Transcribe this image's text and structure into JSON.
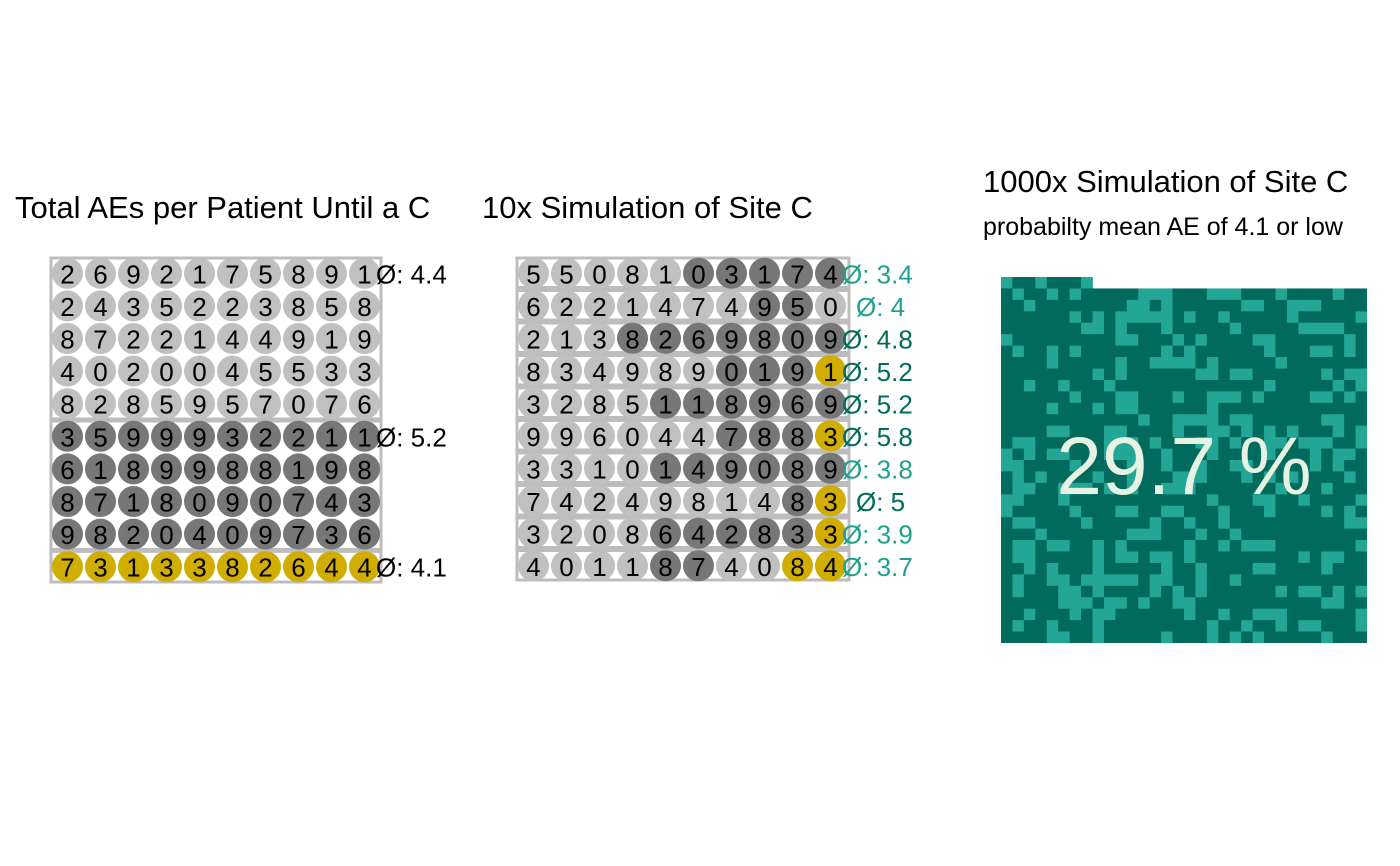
{
  "colors": {
    "light_dot": "#c0c0c0",
    "dark_dot": "#777777",
    "highlight_dot": "#d1ad00",
    "row_box": "#bdbdbd",
    "teal_light": "#1fa18f",
    "teal_dark": "#006c5c",
    "waffle_dark": "#006b5c",
    "waffle_light": "#24a697",
    "waffle_text": "#e6f3e3"
  },
  "chart_data": [
    {
      "type": "table",
      "title": "Total AEs per Patient Until a C",
      "groups": [
        {
          "kind": "light",
          "mean_label": "Ø: 4.4",
          "rows": [
            [
              2,
              6,
              9,
              2,
              1,
              7,
              5,
              8,
              9,
              1
            ],
            [
              2,
              4,
              3,
              5,
              2,
              2,
              3,
              8,
              5,
              8
            ],
            [
              8,
              7,
              2,
              2,
              1,
              4,
              4,
              9,
              1,
              9
            ],
            [
              4,
              0,
              2,
              0,
              0,
              4,
              5,
              5,
              3,
              3
            ],
            [
              8,
              2,
              8,
              5,
              9,
              5,
              7,
              0,
              7,
              6
            ]
          ]
        },
        {
          "kind": "dark",
          "mean_label": "Ø: 5.2",
          "rows": [
            [
              3,
              5,
              9,
              9,
              9,
              3,
              2,
              2,
              1,
              1
            ],
            [
              6,
              1,
              8,
              9,
              9,
              8,
              8,
              1,
              9,
              8
            ],
            [
              8,
              7,
              1,
              8,
              0,
              9,
              0,
              7,
              4,
              3
            ],
            [
              9,
              8,
              2,
              0,
              4,
              0,
              9,
              7,
              3,
              6
            ]
          ]
        },
        {
          "kind": "highlight",
          "mean_label": "Ø: 4.1",
          "rows": [
            [
              7,
              3,
              1,
              3,
              3,
              8,
              2,
              6,
              4,
              4
            ]
          ]
        }
      ]
    },
    {
      "type": "table",
      "title": "10x Simulation of Site C",
      "rows": [
        {
          "values": [
            5,
            5,
            0,
            8,
            1,
            0,
            3,
            1,
            7,
            4
          ],
          "kinds": "LLLLLDDDDD",
          "mean_label": "Ø: 3.4",
          "label_color": "teal_light"
        },
        {
          "values": [
            6,
            2,
            2,
            1,
            4,
            7,
            4,
            9,
            5,
            0
          ],
          "kinds": "LLLLLLLDDL",
          "mean_label": "Ø: 4",
          "label_color": "teal_light"
        },
        {
          "values": [
            2,
            1,
            3,
            8,
            2,
            6,
            9,
            8,
            0,
            9
          ],
          "kinds": "LLLDDDDDDD",
          "mean_label": "Ø: 4.8",
          "label_color": "teal_dark"
        },
        {
          "values": [
            8,
            3,
            4,
            9,
            8,
            9,
            0,
            1,
            9,
            1
          ],
          "kinds": "LLLLLLDDDH",
          "mean_label": "Ø: 5.2",
          "label_color": "teal_dark"
        },
        {
          "values": [
            3,
            2,
            8,
            5,
            1,
            1,
            8,
            9,
            6,
            9
          ],
          "kinds": "LLLLDDDDDD",
          "mean_label": "Ø: 5.2",
          "label_color": "teal_dark"
        },
        {
          "values": [
            9,
            9,
            6,
            0,
            4,
            4,
            7,
            8,
            8,
            3
          ],
          "kinds": "LLLLLLDDDH",
          "mean_label": "Ø: 5.8",
          "label_color": "teal_dark"
        },
        {
          "values": [
            3,
            3,
            1,
            0,
            1,
            4,
            9,
            0,
            8,
            9
          ],
          "kinds": "LLLLDDDDDD",
          "mean_label": "Ø: 3.8",
          "label_color": "teal_light"
        },
        {
          "values": [
            7,
            4,
            2,
            4,
            9,
            8,
            1,
            4,
            8,
            3
          ],
          "kinds": "LLLLLLLLDH",
          "mean_label": "Ø: 5",
          "label_color": "teal_dark"
        },
        {
          "values": [
            3,
            2,
            0,
            8,
            6,
            4,
            2,
            8,
            3,
            3
          ],
          "kinds": "LLLLDDDDDH",
          "mean_label": "Ø: 3.9",
          "label_color": "teal_light"
        },
        {
          "values": [
            4,
            0,
            1,
            1,
            8,
            7,
            4,
            0,
            8,
            4
          ],
          "kinds": "LLLLDDLLHH",
          "mean_label": "Ø: 3.7",
          "label_color": "teal_light"
        }
      ]
    },
    {
      "type": "heatmap",
      "title": "1000x Simulation of Site C",
      "subtitle": "probabilty mean AE of 4.1 or low",
      "value_label": "29.7 %",
      "probability": 0.297,
      "grid": {
        "cols": 32,
        "full_rows": 31,
        "partial_top_row_cells": 8,
        "total_cells": 1000
      }
    }
  ]
}
